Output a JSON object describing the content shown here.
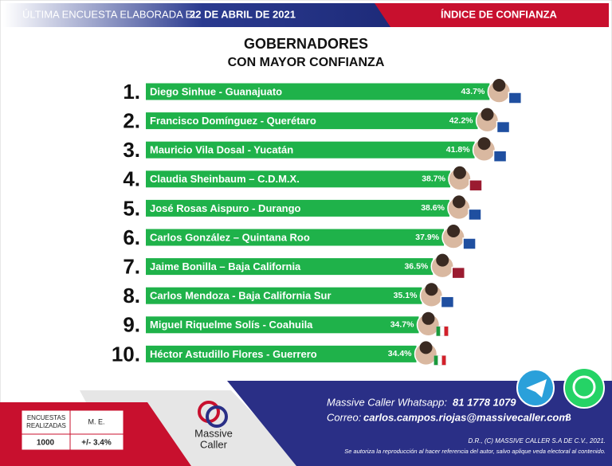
{
  "header": {
    "survey_label": "ÚLTIMA ENCUESTA ELABORADA EL",
    "survey_date": "22 DE ABRIL DE 2021",
    "section": "ÍNDICE DE CONFIANZA"
  },
  "chart_data": {
    "type": "bar",
    "orientation": "horizontal",
    "title": "GOBERNADORES",
    "subtitle": "CON MAYOR CONFIANZA",
    "ranks": [
      "1.",
      "2.",
      "3.",
      "4.",
      "5.",
      "6.",
      "7.",
      "8.",
      "9.",
      "10."
    ],
    "categories": [
      "Diego Sinhue - Guanajuato",
      "Francisco Domínguez - Querétaro",
      "Mauricio Vila Dosal - Yucatán",
      "Claudia Sheinbaum – C.D.M.X.",
      "José Rosas Aispuro - Durango",
      "Carlos González – Quintana Roo",
      "Jaime Bonilla – Baja California",
      "Carlos Mendoza  - Baja California Sur",
      "Miguel Riquelme Solís - Coahuila",
      "Héctor Astudillo Flores - Guerrero"
    ],
    "values": [
      43.7,
      42.2,
      41.8,
      38.7,
      38.6,
      37.9,
      36.5,
      35.1,
      34.7,
      34.4
    ],
    "value_labels": [
      "43.7%",
      "42.2%",
      "41.8%",
      "38.7%",
      "38.6%",
      "37.9%",
      "36.5%",
      "35.1%",
      "34.7%",
      "34.4%"
    ],
    "color": "#1fb24a"
  },
  "survey_table": {
    "headers": [
      "ENCUESTAS REALIZADAS",
      "M. E."
    ],
    "row": [
      "1000",
      "+/- 3.4%"
    ]
  },
  "footer": {
    "logo_line1": "Massive",
    "logo_line2": "Caller",
    "whatsapp_label": "Massive Caller Whatsapp:",
    "whatsapp_number": "81 1778 1079",
    "email_label": "Correo:",
    "email": "carlos.campos.riojas@massivecaller.com",
    "page": "8",
    "copyright": "D.R., (C) MASSIVE CALLER S.A DE C.V., 2021.",
    "disclaimer": "Se autoriza la reproducción al hacer referencia del autor, salvo aplique veda electoral al contenido."
  }
}
